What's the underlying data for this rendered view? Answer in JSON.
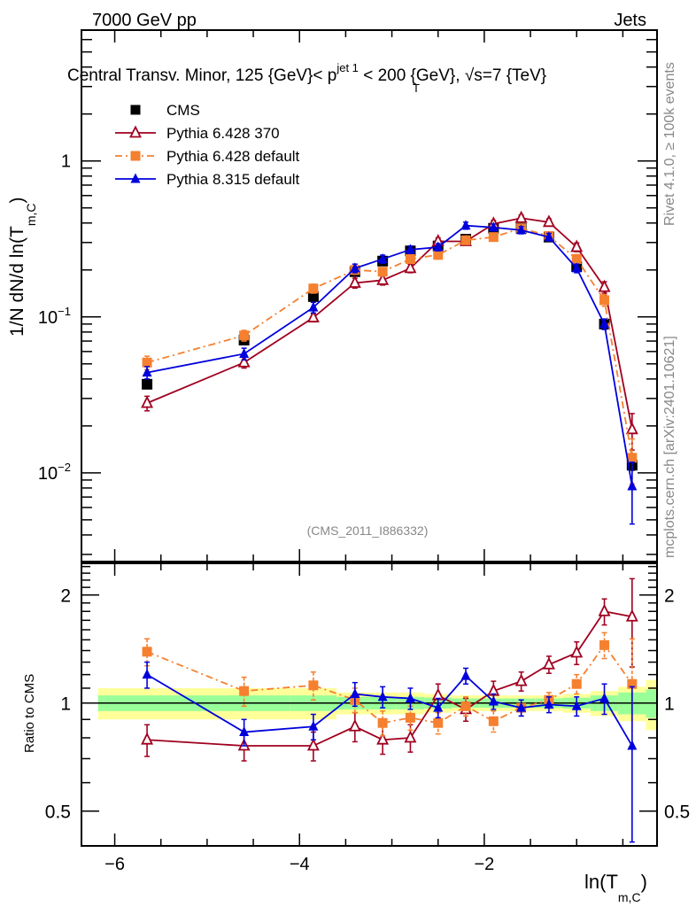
{
  "header": {
    "left": "7000 GeV pp",
    "right": "Jets"
  },
  "side_text": {
    "rivet": "Rivet 4.1.0, ≥ 100k events",
    "mcplots": "mcplots.cern.ch [arXiv:2401.10621]"
  },
  "chart_data": [
    {
      "type": "line",
      "panel": "main",
      "title": "Central Transv. Minor, 125 {GeV}< p_T^{jet 1} < 200 {GeV}, √s=7 {TeV}",
      "title_parts": {
        "pre": "Central Transv. Minor, 125 {GeV}< p",
        "sub": "T",
        "sup": "jet 1",
        "post": " < 200 {GeV}, √s=7 {TeV}"
      },
      "ylabel": "1/N  dN/d ln(T_{m,C})",
      "ylabel_parts": {
        "pre": "1/N    dN/d ln(T",
        "sub": "m,C",
        "post": ")"
      },
      "yscale": "log",
      "ylim": [
        0.0027,
        6.9
      ],
      "xlim": [
        -6.36,
        -0.13
      ],
      "yticks": [
        {
          "value": 1,
          "label": "1"
        },
        {
          "value": 0.1,
          "label": "10",
          "exp": "−1"
        },
        {
          "value": 0.01,
          "label": "10",
          "exp": "−2"
        }
      ],
      "watermark": "(CMS_2011_I886332)",
      "legend_position": "top-left",
      "x": [
        -5.65,
        -4.6,
        -3.85,
        -3.4,
        -3.1,
        -2.8,
        -2.5,
        -2.2,
        -1.9,
        -1.6,
        -1.3,
        -1.0,
        -0.7,
        -0.4
      ],
      "series": [
        {
          "name": "CMS",
          "color": "#000000",
          "marker": "square",
          "line": "none",
          "values": [
            0.037,
            0.071,
            0.135,
            0.195,
            0.228,
            0.265,
            0.285,
            0.315,
            0.37,
            0.37,
            0.325,
            0.21,
            0.09,
            0.0112
          ],
          "err": [
            0.002,
            0.004,
            0.006,
            0.008,
            0.009,
            0.01,
            0.01,
            0.011,
            0.012,
            0.012,
            0.011,
            0.009,
            0.005,
            0.0008
          ]
        },
        {
          "name": "Pythia 6.428 370",
          "color": "#a0001f",
          "marker": "open-triangle",
          "line": "solid",
          "values": [
            0.028,
            0.051,
            0.099,
            0.165,
            0.172,
            0.205,
            0.305,
            0.305,
            0.395,
            0.43,
            0.405,
            0.28,
            0.155,
            0.019
          ],
          "err": [
            0.003,
            0.004,
            0.006,
            0.012,
            0.012,
            0.013,
            0.016,
            0.016,
            0.02,
            0.02,
            0.02,
            0.018,
            0.013,
            0.005
          ]
        },
        {
          "name": "Pythia 6.428 default",
          "color": "#f5802f",
          "marker": "square",
          "line": "dashdot",
          "values": [
            0.051,
            0.076,
            0.152,
            0.2,
            0.195,
            0.235,
            0.25,
            0.31,
            0.325,
            0.37,
            0.33,
            0.235,
            0.128,
            0.0125
          ],
          "err": [
            0.005,
            0.006,
            0.01,
            0.012,
            0.012,
            0.014,
            0.015,
            0.018,
            0.018,
            0.02,
            0.02,
            0.016,
            0.011,
            0.004
          ]
        },
        {
          "name": "Pythia 8.315 default",
          "color": "#0000dd",
          "marker": "triangle",
          "line": "solid",
          "values": [
            0.044,
            0.058,
            0.115,
            0.205,
            0.235,
            0.27,
            0.28,
            0.385,
            0.375,
            0.36,
            0.325,
            0.205,
            0.09,
            0.0082
          ],
          "err": [
            0.004,
            0.005,
            0.009,
            0.013,
            0.014,
            0.015,
            0.015,
            0.02,
            0.019,
            0.019,
            0.018,
            0.013,
            0.007,
            0.0035
          ]
        }
      ]
    },
    {
      "type": "line",
      "panel": "ratio",
      "ylabel": "Ratio to CMS",
      "yscale": "log",
      "ylim": [
        0.4,
        2.45
      ],
      "xlim": [
        -6.36,
        -0.13
      ],
      "yticks": [
        {
          "value": 0.5,
          "label": "0.5"
        },
        {
          "value": 1,
          "label": "1"
        },
        {
          "value": 2,
          "label": "2"
        }
      ],
      "xticks": [
        {
          "value": -6,
          "label": "−6"
        },
        {
          "value": -4,
          "label": "−4"
        },
        {
          "value": -2,
          "label": "−2"
        }
      ],
      "xlabel": "ln(T_{m,C})",
      "xlabel_parts": {
        "pre": "ln(T",
        "sub": "m,C",
        "post": ")"
      },
      "x": [
        -5.65,
        -4.6,
        -3.85,
        -3.4,
        -3.1,
        -2.8,
        -2.5,
        -2.2,
        -1.9,
        -1.6,
        -1.3,
        -1.0,
        -0.7,
        -0.4
      ],
      "bin_edges": [
        -6.18,
        -4.1,
        -3.6,
        -3.25,
        -2.95,
        -2.65,
        -2.35,
        -2.05,
        -1.75,
        -1.45,
        -1.15,
        -0.85,
        -0.55,
        -0.25,
        -0.13
      ],
      "band_stat": [
        0.05,
        0.05,
        0.04,
        0.04,
        0.04,
        0.035,
        0.03,
        0.03,
        0.03,
        0.03,
        0.035,
        0.05,
        0.07,
        0.09
      ],
      "band_total": [
        0.1,
        0.1,
        0.07,
        0.07,
        0.07,
        0.06,
        0.05,
        0.05,
        0.05,
        0.05,
        0.06,
        0.08,
        0.11,
        0.16
      ],
      "series": [
        {
          "name": "Pythia 6.428 370",
          "color": "#a0001f",
          "marker": "open-triangle",
          "line": "solid",
          "values": [
            0.79,
            0.76,
            0.76,
            0.86,
            0.79,
            0.8,
            1.05,
            0.96,
            1.08,
            1.15,
            1.28,
            1.38,
            1.8,
            1.74
          ],
          "err": [
            0.08,
            0.07,
            0.07,
            0.08,
            0.07,
            0.07,
            0.08,
            0.07,
            0.07,
            0.07,
            0.07,
            0.1,
            0.15,
            0.48
          ]
        },
        {
          "name": "Pythia 6.428 default",
          "color": "#f5802f",
          "marker": "square",
          "line": "dashdot",
          "values": [
            1.39,
            1.08,
            1.12,
            1.02,
            0.88,
            0.91,
            0.88,
            0.98,
            0.89,
            0.97,
            1.02,
            1.13,
            1.45,
            1.13
          ],
          "err": [
            0.12,
            0.1,
            0.1,
            0.08,
            0.07,
            0.07,
            0.06,
            0.06,
            0.06,
            0.05,
            0.05,
            0.07,
            0.12,
            0.38
          ]
        },
        {
          "name": "Pythia 8.315 default",
          "color": "#0000dd",
          "marker": "triangle",
          "line": "solid",
          "values": [
            1.2,
            0.83,
            0.86,
            1.06,
            1.04,
            1.03,
            0.97,
            1.19,
            1.01,
            0.97,
            0.99,
            0.98,
            1.03,
            0.76
          ],
          "err": [
            0.1,
            0.07,
            0.07,
            0.08,
            0.07,
            0.07,
            0.06,
            0.06,
            0.05,
            0.05,
            0.05,
            0.06,
            0.1,
            0.35
          ]
        }
      ]
    }
  ]
}
